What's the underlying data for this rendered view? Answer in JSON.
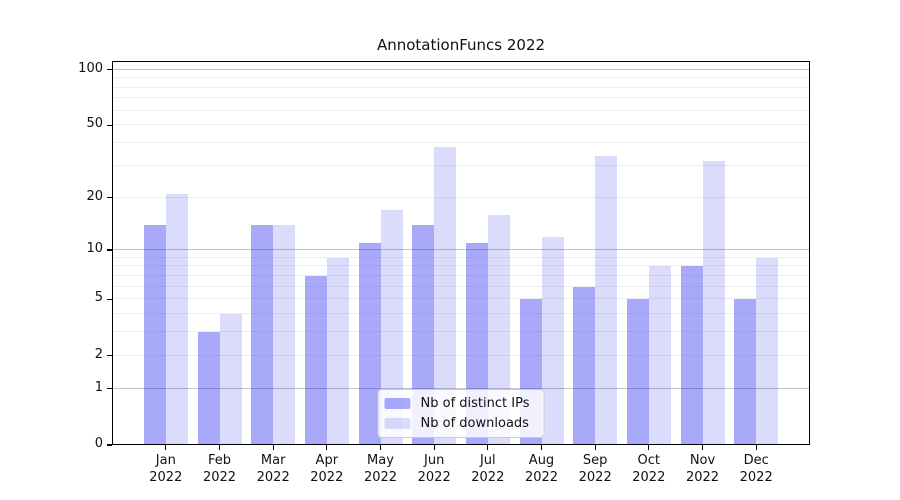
{
  "chart_data": {
    "type": "bar",
    "title": "AnnotationFuncs 2022",
    "categories": [
      "Jan 2022",
      "Feb 2022",
      "Mar 2022",
      "Apr 2022",
      "May 2022",
      "Jun 2022",
      "Jul 2022",
      "Aug 2022",
      "Sep 2022",
      "Oct 2022",
      "Nov 2022",
      "Dec 2022"
    ],
    "series": [
      {
        "name": "Nb of distinct IPs",
        "color": "rgba(40,40,240,0.40)",
        "values": [
          14,
          3,
          14,
          7,
          11,
          14,
          11,
          5,
          6,
          5,
          8,
          5
        ]
      },
      {
        "name": "Nb of downloads",
        "color": "rgba(40,40,240,0.17)",
        "values": [
          21,
          4,
          14,
          9,
          17,
          38,
          16,
          12,
          34,
          8,
          32,
          9
        ]
      }
    ],
    "yscale": "log1p",
    "ylim": [
      0,
      111.5
    ],
    "yticks": [
      0,
      1,
      2,
      5,
      10,
      20,
      50,
      100
    ],
    "minor_gridlines": [
      2,
      3,
      4,
      5,
      6,
      7,
      8,
      9,
      20,
      30,
      40,
      50,
      60,
      70,
      80,
      90
    ],
    "major_gridlines": [
      1,
      10,
      100
    ],
    "grid": true,
    "legend_position": "lower center",
    "colors": {
      "minor_grid": "#efedf0",
      "major_grid": "#c3c3c3",
      "spine": "#000000",
      "text": "#111111"
    }
  }
}
